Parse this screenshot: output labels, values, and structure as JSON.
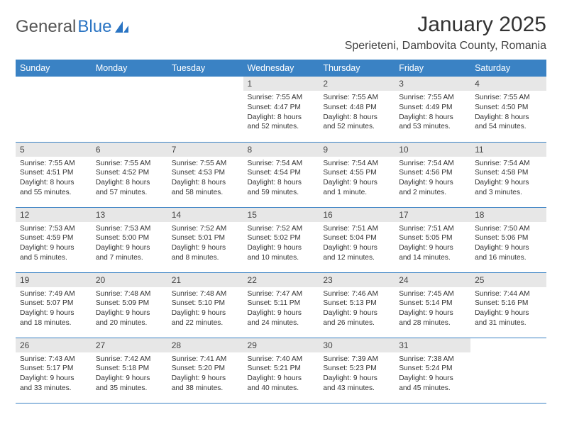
{
  "logo": {
    "part1": "General",
    "part2": "Blue"
  },
  "title": "January 2025",
  "location": "Sperieteni, Dambovita County, Romania",
  "colors": {
    "header_bg": "#3a82c4",
    "header_text": "#ffffff",
    "daynum_bg": "#e7e7e7",
    "row_border": "#3a82c4",
    "logo_accent": "#2a74c3",
    "page_bg": "#ffffff",
    "body_text": "#333333"
  },
  "day_names": [
    "Sunday",
    "Monday",
    "Tuesday",
    "Wednesday",
    "Thursday",
    "Friday",
    "Saturday"
  ],
  "weeks": [
    [
      {
        "n": "",
        "t": ""
      },
      {
        "n": "",
        "t": ""
      },
      {
        "n": "",
        "t": ""
      },
      {
        "n": "1",
        "t": "Sunrise: 7:55 AM\nSunset: 4:47 PM\nDaylight: 8 hours and 52 minutes."
      },
      {
        "n": "2",
        "t": "Sunrise: 7:55 AM\nSunset: 4:48 PM\nDaylight: 8 hours and 52 minutes."
      },
      {
        "n": "3",
        "t": "Sunrise: 7:55 AM\nSunset: 4:49 PM\nDaylight: 8 hours and 53 minutes."
      },
      {
        "n": "4",
        "t": "Sunrise: 7:55 AM\nSunset: 4:50 PM\nDaylight: 8 hours and 54 minutes."
      }
    ],
    [
      {
        "n": "5",
        "t": "Sunrise: 7:55 AM\nSunset: 4:51 PM\nDaylight: 8 hours and 55 minutes."
      },
      {
        "n": "6",
        "t": "Sunrise: 7:55 AM\nSunset: 4:52 PM\nDaylight: 8 hours and 57 minutes."
      },
      {
        "n": "7",
        "t": "Sunrise: 7:55 AM\nSunset: 4:53 PM\nDaylight: 8 hours and 58 minutes."
      },
      {
        "n": "8",
        "t": "Sunrise: 7:54 AM\nSunset: 4:54 PM\nDaylight: 8 hours and 59 minutes."
      },
      {
        "n": "9",
        "t": "Sunrise: 7:54 AM\nSunset: 4:55 PM\nDaylight: 9 hours and 1 minute."
      },
      {
        "n": "10",
        "t": "Sunrise: 7:54 AM\nSunset: 4:56 PM\nDaylight: 9 hours and 2 minutes."
      },
      {
        "n": "11",
        "t": "Sunrise: 7:54 AM\nSunset: 4:58 PM\nDaylight: 9 hours and 3 minutes."
      }
    ],
    [
      {
        "n": "12",
        "t": "Sunrise: 7:53 AM\nSunset: 4:59 PM\nDaylight: 9 hours and 5 minutes."
      },
      {
        "n": "13",
        "t": "Sunrise: 7:53 AM\nSunset: 5:00 PM\nDaylight: 9 hours and 7 minutes."
      },
      {
        "n": "14",
        "t": "Sunrise: 7:52 AM\nSunset: 5:01 PM\nDaylight: 9 hours and 8 minutes."
      },
      {
        "n": "15",
        "t": "Sunrise: 7:52 AM\nSunset: 5:02 PM\nDaylight: 9 hours and 10 minutes."
      },
      {
        "n": "16",
        "t": "Sunrise: 7:51 AM\nSunset: 5:04 PM\nDaylight: 9 hours and 12 minutes."
      },
      {
        "n": "17",
        "t": "Sunrise: 7:51 AM\nSunset: 5:05 PM\nDaylight: 9 hours and 14 minutes."
      },
      {
        "n": "18",
        "t": "Sunrise: 7:50 AM\nSunset: 5:06 PM\nDaylight: 9 hours and 16 minutes."
      }
    ],
    [
      {
        "n": "19",
        "t": "Sunrise: 7:49 AM\nSunset: 5:07 PM\nDaylight: 9 hours and 18 minutes."
      },
      {
        "n": "20",
        "t": "Sunrise: 7:48 AM\nSunset: 5:09 PM\nDaylight: 9 hours and 20 minutes."
      },
      {
        "n": "21",
        "t": "Sunrise: 7:48 AM\nSunset: 5:10 PM\nDaylight: 9 hours and 22 minutes."
      },
      {
        "n": "22",
        "t": "Sunrise: 7:47 AM\nSunset: 5:11 PM\nDaylight: 9 hours and 24 minutes."
      },
      {
        "n": "23",
        "t": "Sunrise: 7:46 AM\nSunset: 5:13 PM\nDaylight: 9 hours and 26 minutes."
      },
      {
        "n": "24",
        "t": "Sunrise: 7:45 AM\nSunset: 5:14 PM\nDaylight: 9 hours and 28 minutes."
      },
      {
        "n": "25",
        "t": "Sunrise: 7:44 AM\nSunset: 5:16 PM\nDaylight: 9 hours and 31 minutes."
      }
    ],
    [
      {
        "n": "26",
        "t": "Sunrise: 7:43 AM\nSunset: 5:17 PM\nDaylight: 9 hours and 33 minutes."
      },
      {
        "n": "27",
        "t": "Sunrise: 7:42 AM\nSunset: 5:18 PM\nDaylight: 9 hours and 35 minutes."
      },
      {
        "n": "28",
        "t": "Sunrise: 7:41 AM\nSunset: 5:20 PM\nDaylight: 9 hours and 38 minutes."
      },
      {
        "n": "29",
        "t": "Sunrise: 7:40 AM\nSunset: 5:21 PM\nDaylight: 9 hours and 40 minutes."
      },
      {
        "n": "30",
        "t": "Sunrise: 7:39 AM\nSunset: 5:23 PM\nDaylight: 9 hours and 43 minutes."
      },
      {
        "n": "31",
        "t": "Sunrise: 7:38 AM\nSunset: 5:24 PM\nDaylight: 9 hours and 45 minutes."
      },
      {
        "n": "",
        "t": ""
      }
    ]
  ]
}
